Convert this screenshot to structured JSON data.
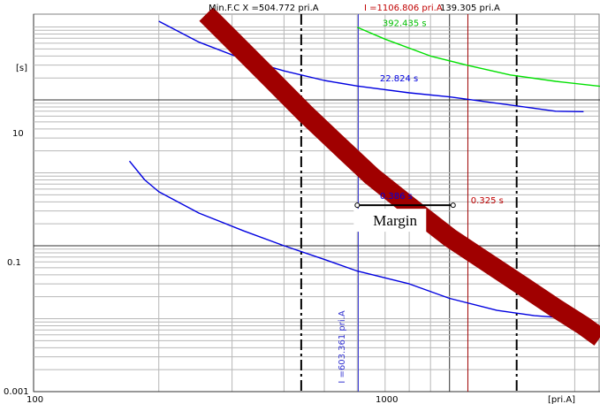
{
  "chart_data": {
    "type": "line",
    "title": "",
    "xlabel": "",
    "ylabel": "",
    "x_scale": "log",
    "y_scale": "log",
    "xlim": [
      100,
      2300
    ],
    "ylim": [
      0.001,
      150
    ],
    "grid": true,
    "x_ticks": [
      "100",
      "1000"
    ],
    "x_unit_label": "[pri.A]",
    "y_ticks": [
      "0.001",
      "0.1",
      "10"
    ],
    "y_unit_label": "[s]",
    "series": [
      {
        "color": "#00e000",
        "x": [
          600,
          700,
          900,
          1100,
          1400,
          1800,
          2300
        ],
        "y": [
          99,
          68,
          40,
          30,
          22,
          18,
          15.4
        ]
      },
      {
        "color": "#0000e0",
        "x": [
          200,
          250,
          320,
          400,
          500,
          600,
          800,
          1000,
          1400,
          1800,
          2100
        ],
        "y": [
          120,
          62,
          36,
          25,
          18.5,
          15.5,
          12.5,
          11,
          8.5,
          7,
          6.9
        ]
      },
      {
        "color": "#0000e0",
        "x": [
          170,
          185,
          200,
          250,
          320,
          400,
          500,
          600,
          800,
          1000,
          1300,
          1600,
          2100
        ],
        "y": [
          1.45,
          0.8,
          0.55,
          0.28,
          0.16,
          0.1,
          0.065,
          0.045,
          0.03,
          0.019,
          0.013,
          0.011,
          0.0098
        ]
      },
      {
        "color": "#a00000",
        "band": true,
        "x": [
          260,
          310,
          370,
          450,
          550,
          650,
          800,
          1000,
          1200,
          1500,
          1800,
          2100,
          2300
        ],
        "y": [
          150,
          55,
          20,
          6.5,
          2.2,
          0.9,
          0.35,
          0.13,
          0.065,
          0.028,
          0.014,
          0.008,
          0.0055
        ]
      }
    ],
    "vertical_lines": [
      {
        "x": 440,
        "style": "dashdot",
        "color": "#000000"
      },
      {
        "x": 1450,
        "style": "dashdot",
        "color": "#000000"
      },
      {
        "x": 603.361,
        "style": "solid",
        "color": "#3030d0"
      },
      {
        "x": 1106.806,
        "style": "solid",
        "color": "#a00000"
      }
    ],
    "header": {
      "min_fc": "Min.F.C X =504.772 pri.A",
      "i_red": "I =1106.806 pri.A",
      "i_black": "139.305 pri.A"
    },
    "annotations": [
      {
        "text": "392.435 s",
        "color": "#00c000",
        "x": 690,
        "y": 103
      },
      {
        "text": "22.824 s",
        "color": "#0000e0",
        "x": 680,
        "y": 18
      },
      {
        "text": "0.386 s",
        "color": "#0000e0",
        "x": 680,
        "y": 0.44
      },
      {
        "text": "0.325 s",
        "color": "#c00000",
        "x": 1125,
        "y": 0.38
      },
      {
        "text": "I =603.361 pri.A",
        "color": "#3030d0",
        "x": 560,
        "y": 0.0013,
        "rotate": true
      }
    ],
    "margin_label": "Margin",
    "margin_arrow": {
      "x_from": 600,
      "x_to": 1020,
      "y": 0.36
    }
  }
}
